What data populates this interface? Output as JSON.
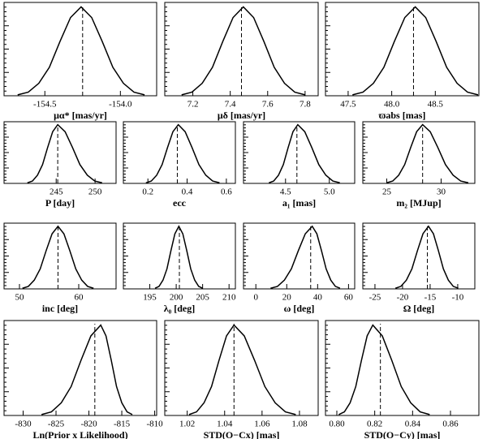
{
  "chart_data": [
    {
      "type": "line",
      "xlabel": "μα* [mas/yr]",
      "x": [
        -154.68,
        -154.61,
        -154.54,
        -154.47,
        -154.4,
        -154.33,
        -154.26,
        -154.19,
        -154.12,
        -154.05,
        -153.98,
        -153.91,
        -153.84
      ],
      "values": [
        0.01,
        0.04,
        0.14,
        0.32,
        0.61,
        0.88,
        1,
        0.88,
        0.61,
        0.32,
        0.14,
        0.04,
        0.01
      ],
      "vline": -154.25,
      "xlim": [
        -154.77,
        -153.76
      ],
      "ylim": [
        0,
        1.05
      ],
      "xticks": [
        -154.5,
        {
          "value": -154,
          "label": "-154.0"
        }
      ],
      "color": "#000000"
    },
    {
      "type": "line",
      "xlabel": "μδ [mas/yr]",
      "x": [
        7.14,
        7.195,
        7.25,
        7.305,
        7.36,
        7.415,
        7.47,
        7.525,
        7.58,
        7.635,
        7.69,
        7.745,
        7.8
      ],
      "values": [
        0.01,
        0.04,
        0.14,
        0.32,
        0.61,
        0.88,
        1,
        0.88,
        0.61,
        0.32,
        0.14,
        0.04,
        0.01
      ],
      "vline": 7.46,
      "xlim": [
        7.05,
        7.87
      ],
      "ylim": [
        0,
        1.05
      ],
      "xticks": [
        7.2,
        7.4,
        7.6,
        7.8
      ],
      "color": "#000000"
    },
    {
      "type": "line",
      "xlabel": "ϖabs [mas]",
      "x": [
        47.55,
        47.67,
        47.79,
        47.91,
        48.03,
        48.15,
        48.27,
        48.39,
        48.51,
        48.63,
        48.75,
        48.87,
        48.99
      ],
      "values": [
        0.01,
        0.04,
        0.14,
        0.32,
        0.61,
        0.88,
        1,
        0.88,
        0.61,
        0.32,
        0.14,
        0.04,
        0.01
      ],
      "vline": 48.25,
      "xlim": [
        47.24,
        49.0
      ],
      "ylim": [
        0,
        1.05
      ],
      "xticks": [
        47.5,
        {
          "value": 48,
          "label": "48.0"
        },
        48.5
      ],
      "color": "#000000"
    },
    {
      "type": "line",
      "xlabel": "P [day]",
      "x": [
        241.3,
        241.95,
        242.6,
        243.25,
        243.9,
        244.55,
        245.2,
        246.15,
        247.1,
        248.05,
        249.0,
        249.95,
        250.9
      ],
      "values": [
        0.01,
        0.04,
        0.14,
        0.32,
        0.61,
        0.88,
        1,
        0.88,
        0.61,
        0.32,
        0.14,
        0.04,
        0.01
      ],
      "vline": 245.2,
      "xlim": [
        238.3,
        252.7
      ],
      "ylim": [
        0,
        1.05
      ],
      "xticks": [
        245,
        250
      ],
      "color": "#000000"
    },
    {
      "type": "line",
      "xlabel": "ecc",
      "x": [
        0.19,
        0.2175,
        0.245,
        0.2725,
        0.3,
        0.3275,
        0.355,
        0.39,
        0.425,
        0.46,
        0.495,
        0.53,
        0.565
      ],
      "values": [
        0.01,
        0.04,
        0.14,
        0.32,
        0.61,
        0.88,
        1,
        0.88,
        0.61,
        0.32,
        0.14,
        0.04,
        0.01
      ],
      "vline": 0.35,
      "xlim": [
        0.075,
        0.646
      ],
      "ylim": [
        0,
        1.05
      ],
      "xticks": [
        0.2,
        0.4,
        0.6
      ],
      "color": "#000000"
    },
    {
      "type": "line",
      "xlabel": "a₁ [mas]",
      "x": [
        4.31,
        4.365,
        4.42,
        4.475,
        4.53,
        4.585,
        4.64,
        4.72,
        4.8,
        4.88,
        4.96,
        5.04,
        5.12
      ],
      "values": [
        0.01,
        0.04,
        0.14,
        0.32,
        0.61,
        0.88,
        1,
        0.88,
        0.61,
        0.32,
        0.14,
        0.04,
        0.01
      ],
      "vline": 4.63,
      "xlim": [
        4.02,
        5.29
      ],
      "ylim": [
        0,
        1.05
      ],
      "xticks": [
        4.5,
        {
          "value": 5,
          "label": "5.0"
        }
      ],
      "color": "#000000"
    },
    {
      "type": "line",
      "xlabel": "m₂ [MJup]",
      "x": [
        25.0,
        25.55,
        26.1,
        26.65,
        27.2,
        27.75,
        28.3,
        29.0,
        29.7,
        30.4,
        31.1,
        31.8,
        32.5
      ],
      "values": [
        0.01,
        0.04,
        0.14,
        0.32,
        0.61,
        0.88,
        1,
        0.88,
        0.61,
        0.32,
        0.14,
        0.04,
        0.01
      ],
      "vline": 28.3,
      "xlim": [
        22.8,
        33.1
      ],
      "ylim": [
        0,
        1.05
      ],
      "xticks": [
        25,
        30
      ],
      "color": "#000000"
    },
    {
      "type": "line",
      "xlabel": "inc [deg]",
      "x": [
        50.5,
        51.5,
        52.5,
        53.5,
        54.5,
        55.5,
        56.5,
        57.5,
        58.5,
        59.5,
        60.5,
        61.5,
        62.5
      ],
      "values": [
        0.01,
        0.04,
        0.14,
        0.32,
        0.61,
        0.88,
        1,
        0.88,
        0.61,
        0.32,
        0.14,
        0.04,
        0.01
      ],
      "vline": 56.5,
      "xlim": [
        47.4,
        66.3
      ],
      "ylim": [
        0,
        1.05
      ],
      "xticks": [
        50,
        60
      ],
      "color": "#000000"
    },
    {
      "type": "line",
      "xlabel": "λ₀ [deg]",
      "x": [
        196.0,
        196.75,
        197.5,
        198.25,
        199.0,
        199.75,
        200.5,
        201.25,
        202.0,
        202.75,
        203.5,
        204.25,
        205.0
      ],
      "values": [
        0.01,
        0.04,
        0.14,
        0.32,
        0.61,
        0.88,
        1,
        0.88,
        0.61,
        0.32,
        0.14,
        0.04,
        0.01
      ],
      "vline": 200.6,
      "xlim": [
        190,
        211.2
      ],
      "ylim": [
        0,
        1.05
      ],
      "xticks": [
        195,
        200,
        205,
        210
      ],
      "color": "#000000"
    },
    {
      "type": "line",
      "xlabel": "ω [deg]",
      "x": [
        9.5,
        14,
        18.5,
        23,
        27.5,
        32,
        36.5,
        39.5,
        42.5,
        45.5,
        48.5,
        51.5,
        54.5
      ],
      "values": [
        0.01,
        0.04,
        0.14,
        0.32,
        0.61,
        0.88,
        1,
        0.88,
        0.61,
        0.32,
        0.14,
        0.04,
        0.01
      ],
      "vline": 35.5,
      "xlim": [
        -8,
        64
      ],
      "ylim": [
        0,
        1.05
      ],
      "xticks": [
        0,
        20,
        40,
        60
      ],
      "color": "#000000"
    },
    {
      "type": "line",
      "xlabel": "Ω [deg]",
      "x": [
        -21.3,
        -20.3,
        -19.3,
        -18.3,
        -17.3,
        -16.3,
        -15.3,
        -14.4,
        -13.5,
        -12.6,
        -11.7,
        -10.8,
        -9.9
      ],
      "values": [
        0.01,
        0.04,
        0.14,
        0.32,
        0.61,
        0.88,
        1,
        0.88,
        0.61,
        0.32,
        0.14,
        0.04,
        0.01
      ],
      "vline": -15.5,
      "xlim": [
        -27.2,
        -6.9
      ],
      "ylim": [
        0,
        1.05
      ],
      "xticks": [
        -25,
        -20,
        -15,
        -10
      ],
      "color": "#000000"
    },
    {
      "type": "line",
      "xlabel": "Ln(Prior x Likelihood)",
      "x": [
        -827.2,
        -825.7,
        -824.2,
        -822.7,
        -821.2,
        -819.7,
        -818.2,
        -817.4,
        -816.6,
        -815.8,
        -815.0,
        -814.2,
        -813.4
      ],
      "values": [
        0.01,
        0.04,
        0.14,
        0.32,
        0.61,
        0.88,
        1,
        0.88,
        0.61,
        0.32,
        0.14,
        0.04,
        0.01
      ],
      "vline": -819.1,
      "xlim": [
        -832.9,
        -809.7
      ],
      "ylim": [
        0,
        1.05
      ],
      "xticks": [
        -830,
        -825,
        -820,
        -815,
        -810
      ],
      "color": "#000000"
    },
    {
      "type": "line",
      "xlabel": "STD(O−Cx) [mas]",
      "x": [
        1.021,
        1.025,
        1.029,
        1.033,
        1.037,
        1.041,
        1.045,
        1.0505,
        1.056,
        1.0615,
        1.067,
        1.0725,
        1.078
      ],
      "values": [
        0.01,
        0.04,
        0.14,
        0.32,
        0.61,
        0.88,
        1,
        0.88,
        0.61,
        0.32,
        0.14,
        0.04,
        0.01
      ],
      "vline": 1.045,
      "xlim": [
        1.008,
        1.09
      ],
      "ylim": [
        0,
        1.05
      ],
      "xticks": [
        1.02,
        1.04,
        1.06,
        1.08
      ],
      "color": "#000000"
    },
    {
      "type": "line",
      "xlabel": "STD(O−Cy) [mas]",
      "x": [
        0.801,
        0.804,
        0.807,
        0.81,
        0.813,
        0.816,
        0.819,
        0.824,
        0.829,
        0.834,
        0.839,
        0.844,
        0.849
      ],
      "values": [
        0.01,
        0.04,
        0.14,
        0.32,
        0.61,
        0.88,
        1,
        0.88,
        0.61,
        0.32,
        0.14,
        0.04,
        0.01
      ],
      "vline": 0.823,
      "xlim": [
        0.794,
        0.875
      ],
      "ylim": [
        0,
        1.05
      ],
      "xticks": [
        {
          "value": 0.8,
          "label": "0.80"
        },
        0.82,
        0.84,
        0.86
      ],
      "color": "#000000"
    }
  ]
}
